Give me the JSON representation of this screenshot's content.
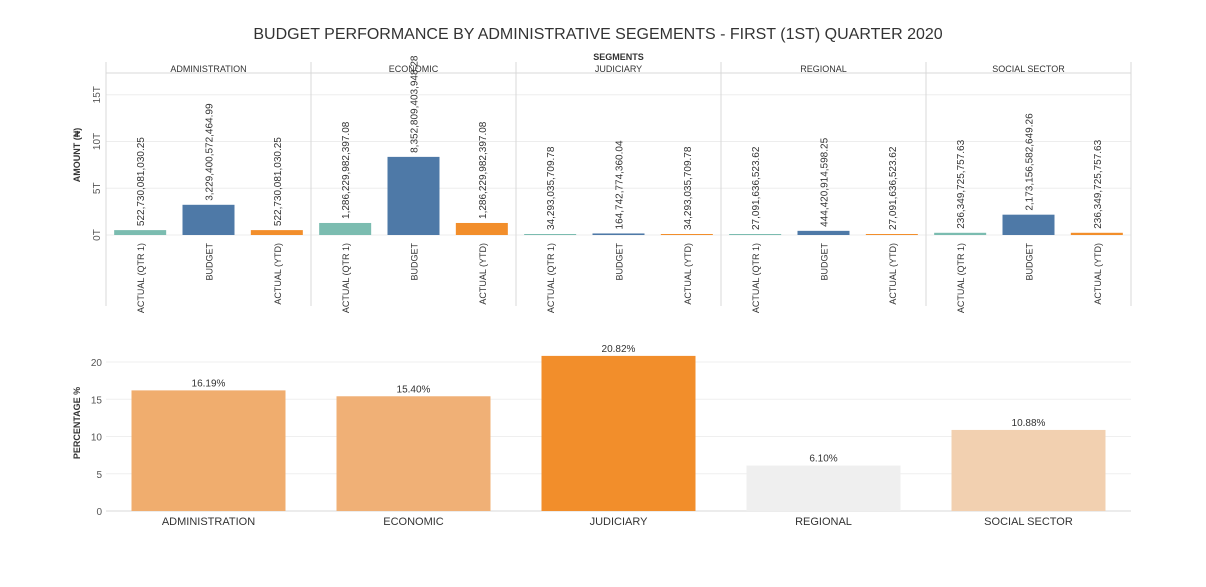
{
  "title": "BUDGET PERFORMANCE BY ADMINISTRATIVE SEGEMENTS - FIRST (1ST) QUARTER 2020",
  "colors": {
    "actual_qtr": "#7bbcb0",
    "budget": "#4e79a7",
    "actual_ytd": "#f28e2b"
  },
  "chart_data": [
    {
      "type": "bar",
      "header": "SEGMENTS",
      "ylabel": "AMOUNT (₦)",
      "ylim": [
        0,
        17000000000000
      ],
      "yticks": [
        {
          "value": 0,
          "label": "0T"
        },
        {
          "value": 5000000000000,
          "label": "5T"
        },
        {
          "value": 10000000000000,
          "label": "10T"
        },
        {
          "value": 15000000000000,
          "label": "15T"
        }
      ],
      "categories": [
        "ACTUAL (QTR 1)",
        "BUDGET",
        "ACTUAL (YTD)"
      ],
      "panels": [
        {
          "name": "ADMINISTRATION",
          "values": [
            522730081030.25,
            3229400572464.99,
            522730081030.25
          ],
          "labels": [
            "522,730,081,030.25",
            "3,229,400,572,464.99",
            "522,730,081,030.25"
          ]
        },
        {
          "name": "ECONOMIC",
          "values": [
            1286229982397.08,
            8352809403948.28,
            1286229982397.08
          ],
          "labels": [
            "1,286,229,982,397.08",
            "8,352,809,403,948.28",
            "1,286,229,982,397.08"
          ]
        },
        {
          "name": "JUDICIARY",
          "values": [
            34293035709.78,
            164742774360.04,
            34293035709.78
          ],
          "labels": [
            "34,293,035,709.78",
            "164,742,774,360.04",
            "34,293,035,709.78"
          ]
        },
        {
          "name": "REGIONAL",
          "values": [
            27091636523.62,
            444420914598.25,
            27091636523.62
          ],
          "labels": [
            "27,091,636,523.62",
            "444,420,914,598.25",
            "27,091,636,523.62"
          ]
        },
        {
          "name": "SOCIAL SECTOR",
          "values": [
            236349725757.63,
            2173156582649.26,
            236349725757.63
          ],
          "labels": [
            "236,349,725,757.63",
            "2,173,156,582,649.26",
            "236,349,725,757.63"
          ]
        }
      ],
      "grid": true
    },
    {
      "type": "bar",
      "ylabel": "PERCENTAGE %",
      "ylim": [
        0,
        22.5
      ],
      "yticks": [
        0,
        5,
        10,
        15,
        20
      ],
      "categories": [
        "ADMINISTRATION",
        "ECONOMIC",
        "JUDICIARY",
        "REGIONAL",
        "SOCIAL SECTOR"
      ],
      "values": [
        16.19,
        15.4,
        20.82,
        6.1,
        10.88
      ],
      "labels": [
        "16.19%",
        "15.40%",
        "20.82%",
        "6.10%",
        "10.88%"
      ],
      "colors": [
        "#f0ad6e",
        "#f0b076",
        "#f28e2b",
        "#efefef",
        "#f2d0b0"
      ],
      "grid": true
    }
  ]
}
